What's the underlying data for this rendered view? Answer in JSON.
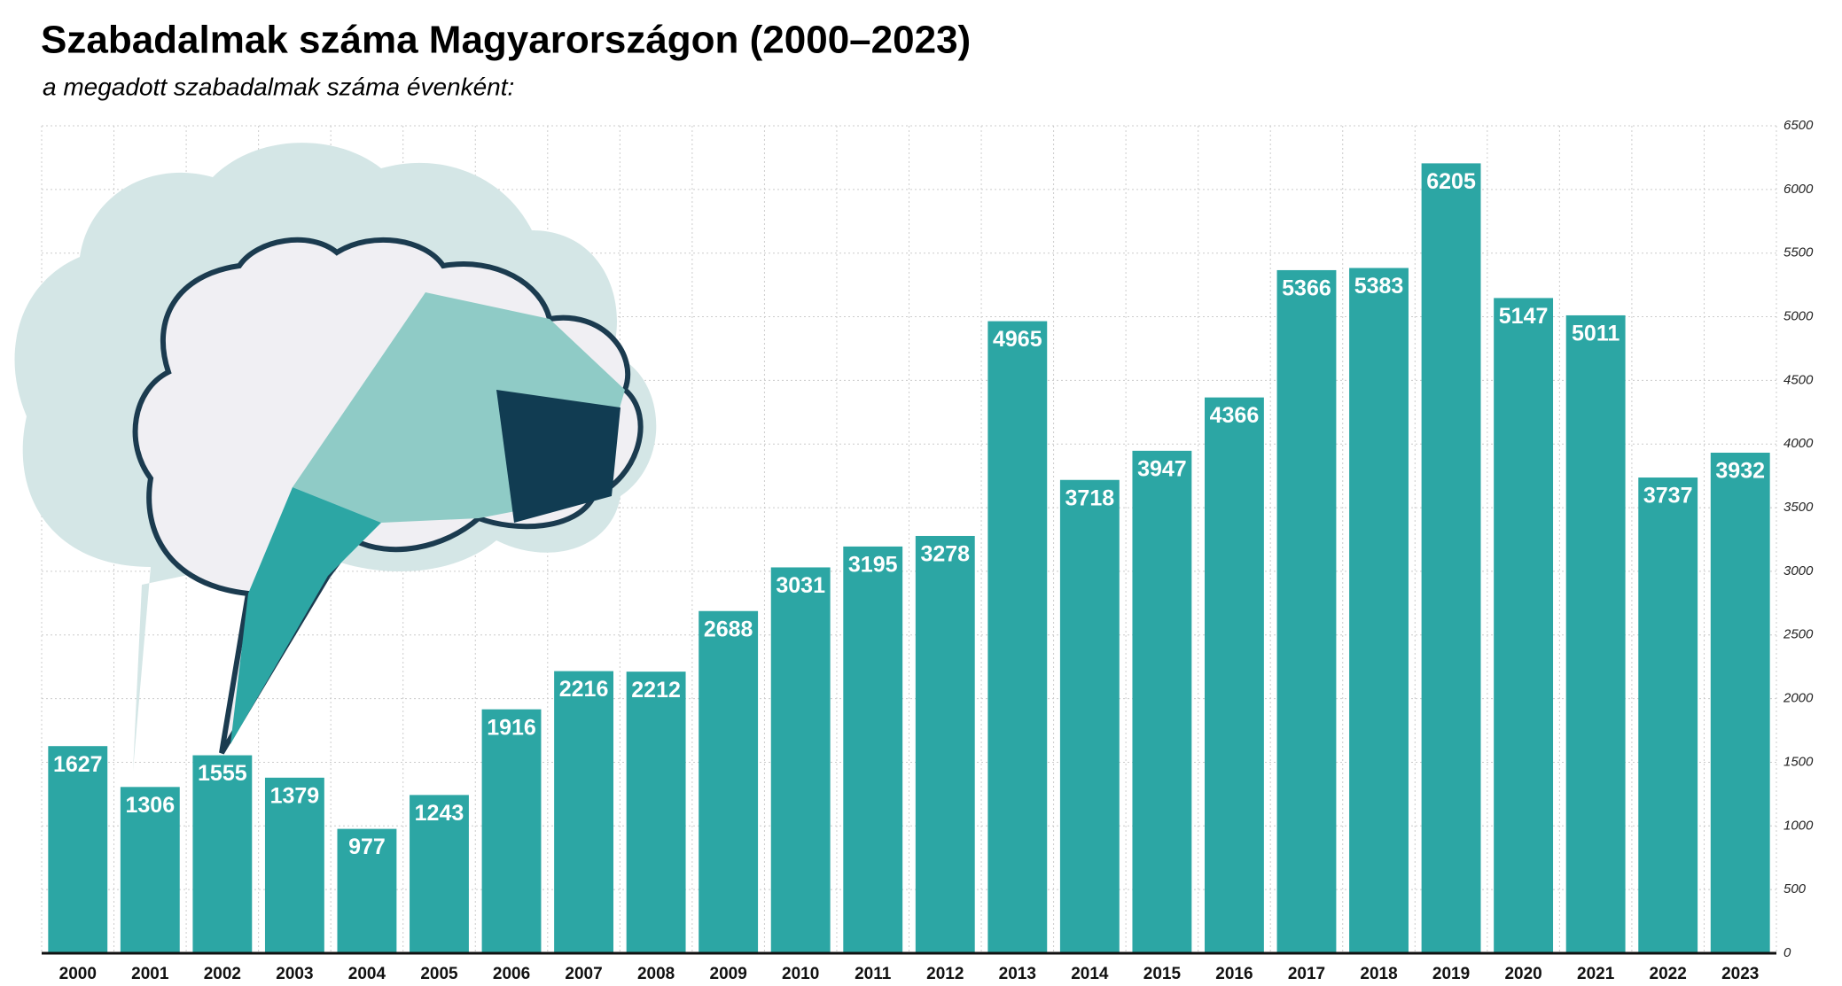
{
  "chart_data": {
    "type": "bar",
    "title": "Szabadalmak száma Magyarországon (2000–2023)",
    "subtitle": "a megadott szabadalmak száma évenként:",
    "categories": [
      "2000",
      "2001",
      "2002",
      "2003",
      "2004",
      "2005",
      "2006",
      "2007",
      "2008",
      "2009",
      "2010",
      "2011",
      "2012",
      "2013",
      "2014",
      "2015",
      "2016",
      "2017",
      "2018",
      "2019",
      "2020",
      "2021",
      "2022",
      "2023"
    ],
    "values": [
      1627,
      1306,
      1555,
      1379,
      977,
      1243,
      1916,
      2216,
      2212,
      2688,
      3031,
      3195,
      3278,
      4965,
      3718,
      3947,
      4366,
      5366,
      5383,
      6205,
      5147,
      5011,
      3737,
      3932
    ],
    "color": "#2ca6a4",
    "ylim": [
      0,
      6500
    ],
    "yticks": [
      0,
      500,
      1000,
      1500,
      2000,
      2500,
      3000,
      3500,
      4000,
      4500,
      5000,
      5500,
      6000,
      6500
    ],
    "grid": true
  }
}
